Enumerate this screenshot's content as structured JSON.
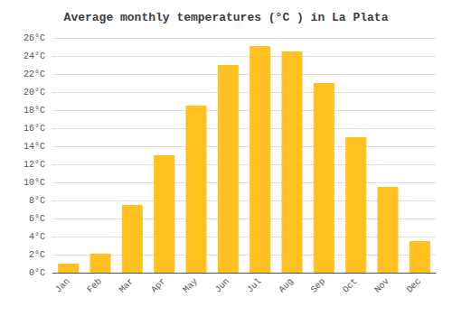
{
  "chart_data": {
    "type": "bar",
    "title": "Average monthly temperatures (°C ) in La Plata",
    "categories": [
      "Jan",
      "Feb",
      "Mar",
      "Apr",
      "May",
      "Jun",
      "Jul",
      "Aug",
      "Sep",
      "Oct",
      "Nov",
      "Dec"
    ],
    "values": [
      1.0,
      2.1,
      7.5,
      13.0,
      18.5,
      23.0,
      25.1,
      24.5,
      21.0,
      15.0,
      9.5,
      3.5
    ],
    "color": "#FFC020",
    "ylim": [
      0,
      26
    ],
    "yticks": [
      {
        "value": 0,
        "label": "0°C"
      },
      {
        "value": 2,
        "label": "2°C"
      },
      {
        "value": 4,
        "label": "4°C"
      },
      {
        "value": 6,
        "label": "6°C"
      },
      {
        "value": 8,
        "label": "8°C"
      },
      {
        "value": 10,
        "label": "10°C"
      },
      {
        "value": 12,
        "label": "12°C"
      },
      {
        "value": 14,
        "label": "14°C"
      },
      {
        "value": 16,
        "label": "16°C"
      },
      {
        "value": 18,
        "label": "18°C"
      },
      {
        "value": 20,
        "label": "20°C"
      },
      {
        "value": 22,
        "label": "22°C"
      },
      {
        "value": 24,
        "label": "24°C"
      },
      {
        "value": 26,
        "label": "26°C"
      }
    ],
    "grid": true
  }
}
